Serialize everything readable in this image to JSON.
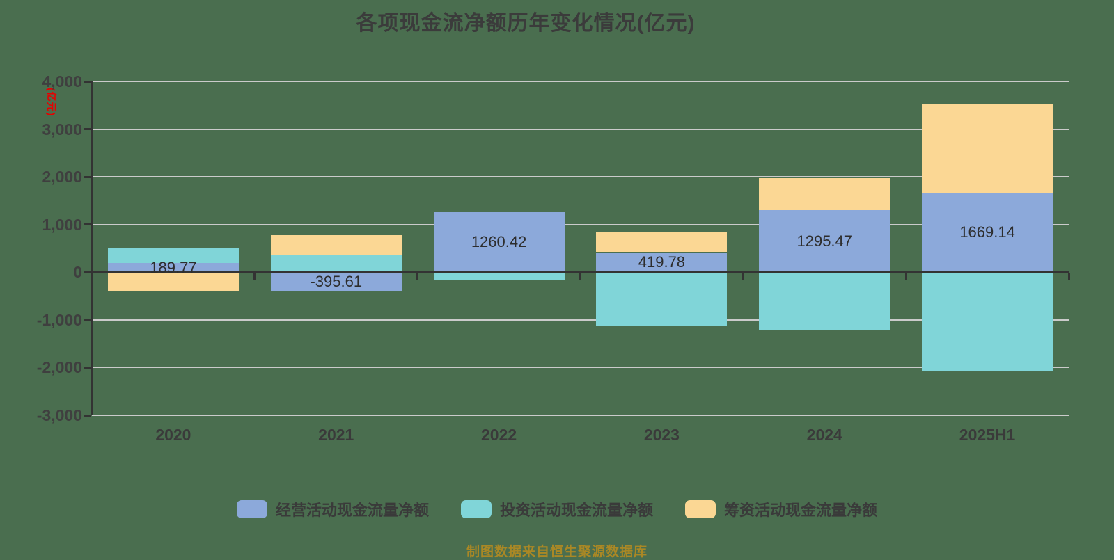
{
  "title": "各项现金流净额历年变化情况(亿元)",
  "y_axis_name": "(亿元)",
  "footer_note": "制图数据来自恒生聚源数据库",
  "colors": {
    "background": "#4a6e4f",
    "operating": "#8ca9da",
    "investing": "#80d5d8",
    "financing": "#fbd794",
    "gridline": "#cbcbcb",
    "axis": "#333333",
    "axis_label": "#3f3f3f",
    "bar_label": "#2d2d2d",
    "y_axis_name_red": "#e60000",
    "footer_gold": "#aa8825"
  },
  "chart_data": {
    "type": "bar",
    "stacked": true,
    "grid": true,
    "legend_position": "bottom",
    "title": "各项现金流净额历年变化情况(亿元)",
    "xlabel": "",
    "ylabel": "(亿元)",
    "ylim": [
      -3000,
      4000
    ],
    "y_ticks": [
      4000,
      3000,
      2000,
      1000,
      0,
      -1000,
      -2000,
      -3000
    ],
    "y_tick_labels": [
      "4,000",
      "3,000",
      "2,000",
      "1,000",
      "0",
      "-1,000",
      "-2,000",
      "-3,000"
    ],
    "categories": [
      "2020",
      "2021",
      "2022",
      "2023",
      "2024",
      "2025H1"
    ],
    "series": [
      {
        "name": "经营活动现金流量净额",
        "color": "#8ca9da",
        "values": [
          189.77,
          -395.61,
          1260.42,
          419.78,
          1295.47,
          1669.14
        ]
      },
      {
        "name": "投资活动现金流量净额",
        "color": "#80d5d8",
        "values": [
          318,
          360,
          -150,
          -1140,
          -1200,
          -2060
        ]
      },
      {
        "name": "筹资活动现金流量净额",
        "color": "#fbd794",
        "values": [
          -390,
          412,
          -25,
          425,
          680,
          1860
        ]
      }
    ],
    "bar_labels": [
      "189.77",
      "-395.61",
      "1260.42",
      "419.78",
      "1295.47",
      "1669.14"
    ],
    "bar_label_series": "经营活动现金流量净额"
  }
}
